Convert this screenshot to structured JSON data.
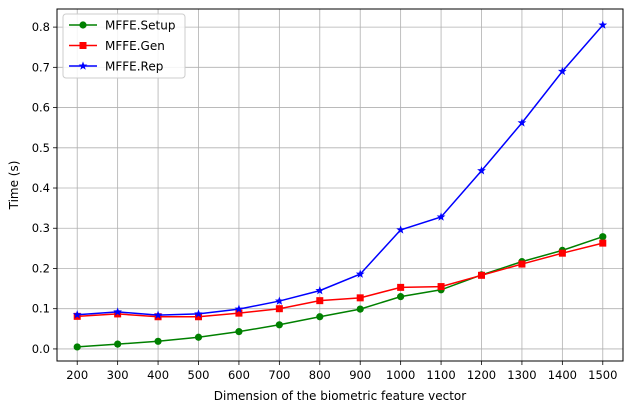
{
  "chart_data": {
    "type": "line",
    "title": "",
    "xlabel": "Dimension of the biometric feature vector",
    "ylabel": "Time (s)",
    "x": [
      200,
      300,
      400,
      500,
      600,
      700,
      800,
      900,
      1000,
      1100,
      1200,
      1300,
      1400,
      1500
    ],
    "xlim": [
      150,
      1550
    ],
    "ylim": [
      -0.03,
      0.845
    ],
    "xticks": [
      200,
      300,
      400,
      500,
      600,
      700,
      800,
      900,
      1000,
      1100,
      1200,
      1300,
      1400,
      1500
    ],
    "yticks": [
      0.0,
      0.1,
      0.2,
      0.3,
      0.4,
      0.5,
      0.6,
      0.7,
      0.8
    ],
    "grid": true,
    "legend_position": "top-left",
    "series": [
      {
        "name": "MFFE.Setup",
        "color": "#008000",
        "marker": "circle",
        "values": [
          0.005,
          0.012,
          0.019,
          0.029,
          0.043,
          0.06,
          0.08,
          0.099,
          0.13,
          0.147,
          0.184,
          0.217,
          0.245,
          0.279
        ]
      },
      {
        "name": "MFFE.Gen",
        "color": "#ff0000",
        "marker": "square",
        "values": [
          0.081,
          0.087,
          0.08,
          0.08,
          0.089,
          0.1,
          0.12,
          0.127,
          0.153,
          0.155,
          0.183,
          0.211,
          0.238,
          0.263
        ]
      },
      {
        "name": "MFFE.Rep",
        "color": "#0000ff",
        "marker": "star",
        "values": [
          0.085,
          0.092,
          0.084,
          0.087,
          0.099,
          0.119,
          0.145,
          0.186,
          0.296,
          0.328,
          0.443,
          0.562,
          0.69,
          0.805
        ]
      }
    ]
  }
}
